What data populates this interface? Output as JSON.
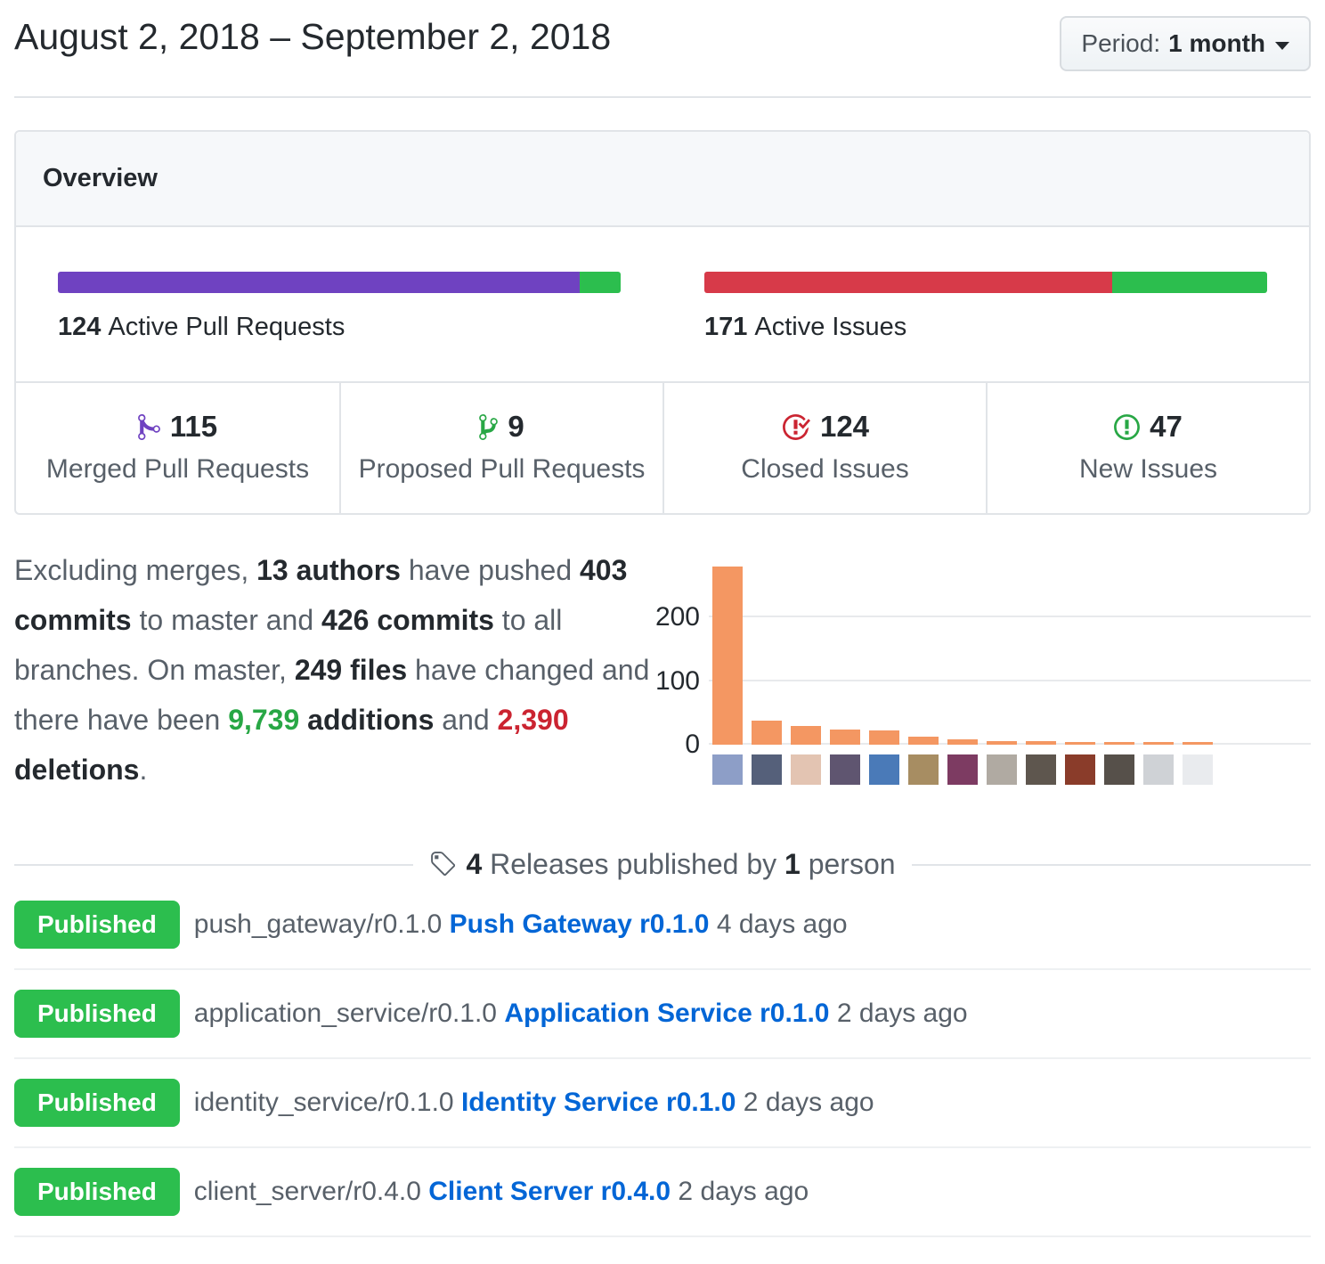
{
  "colors": {
    "purple": "#6f42c1",
    "green": "#2cbe4e",
    "red": "#d73a49",
    "icon_green": "#28a745",
    "icon_purple": "#6f42c1",
    "icon_red": "#cb2431",
    "link_blue": "#0366d6",
    "bar_orange": "#f49762",
    "additions_green": "#28a745",
    "deletions_red": "#cb2431"
  },
  "header": {
    "date_range": "August 2, 2018 – September 2, 2018",
    "period_button": {
      "label": "Period:",
      "value": "1 month",
      "icon": "caret-down-icon"
    }
  },
  "overview": {
    "title": "Overview",
    "pull_requests": {
      "count": "124",
      "label": "Active Pull Requests",
      "merged": 115,
      "proposed": 9
    },
    "issues": {
      "count": "171",
      "label": "Active Issues",
      "closed": 124,
      "new": 47
    },
    "stats": [
      {
        "value": "115",
        "label": "Merged Pull Requests",
        "icon": "git-merge-icon",
        "icon_color": "#6f42c1"
      },
      {
        "value": "9",
        "label": "Proposed Pull Requests",
        "icon": "git-branch-icon",
        "icon_color": "#28a745"
      },
      {
        "value": "124",
        "label": "Closed Issues",
        "icon": "issue-closed-icon",
        "icon_color": "#cb2431"
      },
      {
        "value": "47",
        "label": "New Issues",
        "icon": "issue-opened-icon",
        "icon_color": "#28a745"
      }
    ]
  },
  "summary": {
    "t1": "Excluding merges, ",
    "b1": "13 authors",
    "t2": " have pushed ",
    "b2": "403 commits",
    "t3": " to master and ",
    "b3": "426 commits",
    "t4": " to all branches. On master, ",
    "b4": "249 files",
    "t5": " have changed and there have been ",
    "g1": "9,739",
    "t6": " ",
    "b5": "additions",
    "t7": " and ",
    "r1": "2,390",
    "t8": " ",
    "b6": "deletions",
    "t9": "."
  },
  "chart_data": {
    "type": "bar",
    "title": "",
    "xlabel": "",
    "ylabel": "",
    "categories": [
      "author-01",
      "author-02",
      "author-03",
      "author-04",
      "author-05",
      "author-06",
      "author-07",
      "author-08",
      "author-09",
      "author-10",
      "author-11",
      "author-12",
      "author-13"
    ],
    "values": [
      281,
      38,
      30,
      24,
      23,
      13,
      9,
      6,
      5,
      2,
      2,
      2,
      1
    ],
    "yticks": [
      0,
      100,
      200
    ],
    "ylim": [
      0,
      300
    ],
    "grid": true,
    "legend_position": "none",
    "bar_color": "#f49762",
    "avatar_colors": [
      "#8d9ec7",
      "#55607a",
      "#e3c4b2",
      "#5f5570",
      "#4a7ab8",
      "#a78d62",
      "#7d3b62",
      "#b0aaa2",
      "#5e564e",
      "#8a3c2a",
      "#56504a",
      "#cfd2d6",
      "#e9ebee"
    ]
  },
  "releases": {
    "heading": {
      "count": "4",
      "middle": " Releases published by ",
      "person_count": "1",
      "suffix": " person",
      "icon": "tag-icon"
    },
    "items": [
      {
        "badge": "Published",
        "tag": "push_gateway/r0.1.0 ",
        "title": "Push Gateway r0.1.0",
        "date": " 4 days ago"
      },
      {
        "badge": "Published",
        "tag": "application_service/r0.1.0 ",
        "title": "Application Service r0.1.0",
        "date": " 2 days ago"
      },
      {
        "badge": "Published",
        "tag": "identity_service/r0.1.0 ",
        "title": "Identity Service r0.1.0",
        "date": " 2 days ago"
      },
      {
        "badge": "Published",
        "tag": "client_server/r0.4.0 ",
        "title": "Client Server r0.4.0",
        "date": " 2 days ago"
      }
    ]
  }
}
